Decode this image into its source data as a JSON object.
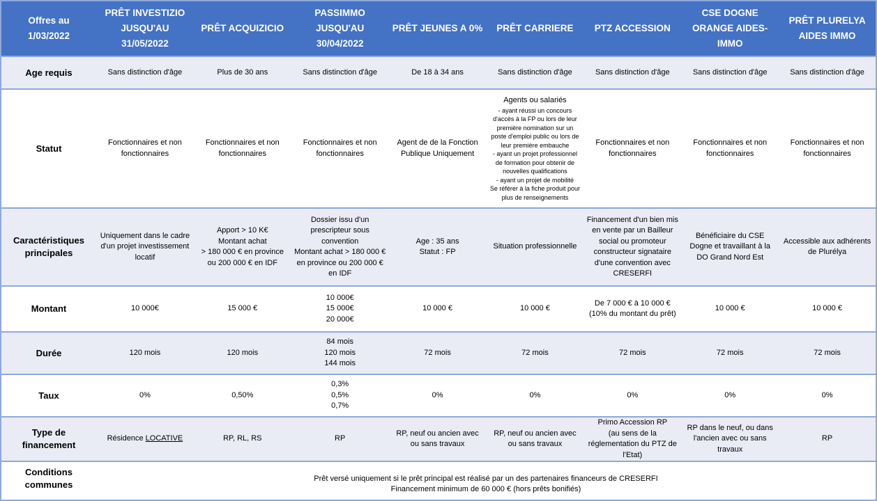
{
  "header": {
    "corner": "Offres au 1/03/2022",
    "columns": [
      "PRÊT INVESTIZIO JUSQU'AU 31/05/2022",
      "PRÊT ACQUIZICIO",
      "PASSIMMO JUSQU'AU 30/04/2022",
      "PRÊT JEUNES A 0%",
      "PRÊT CARRIERE",
      "PTZ ACCESSION",
      "CSE DOGNE ORANGE AIDES- IMMO",
      "PRÊT PLURELYA AIDES IMMO"
    ]
  },
  "rows": [
    {
      "label": "Age requis",
      "cells": [
        "Sans distinction d'âge",
        "Plus de 30 ans",
        "Sans distinction d'âge",
        "De 18 à 34 ans",
        "Sans distinction d'âge",
        "Sans distinction d'âge",
        "Sans distinction d'âge",
        "Sans distinction d'âge"
      ]
    },
    {
      "label": "Statut",
      "cells": [
        "Fonctionnaires et non fonctionnaires",
        "Fonctionnaires et non fonctionnaires",
        "Fonctionnaires et non fonctionnaires",
        "Agent de de la Fonction Publique Uniquement",
        "",
        "Fonctionnaires et non fonctionnaires",
        "Fonctionnaires et non fonctionnaires",
        "Fonctionnaires et non fonctionnaires"
      ],
      "carriere_title": "Agents ou salariés",
      "carriere_detail": "- ayant réussi un concours d'accès à la FP ou lors de leur première nomination sur un poste d'emploi public ou lors de leur première embauche\n- ayant un projet professionnel de formation pour obtenir de nouvelles qualifications\n- ayant un projet de mobilité\nSe référer à la fiche produit pour plus de renseignements"
    },
    {
      "label": "Caractéristiques principales",
      "cells": [
        "Uniquement dans le cadre d'un projet investissement locatif",
        "Apport > 10 K€\nMontant achat\n> 180 000 € en province ou 200 000 € en IDF",
        "Dossier issu d'un prescripteur sous convention\nMontant achat > 180 000 € en province ou 200 000 € en IDF",
        "Age : 35 ans\nStatut : FP",
        "Situation professionnelle",
        "Financement d'un bien mis en vente par un Bailleur social ou promoteur constructeur signataire d'une convention avec CRESERFI",
        "Bénéficiaire du CSE Dogne et travaillant à la DO Grand Nord Est",
        "Accessible aux adhérents de Plurélya"
      ]
    },
    {
      "label": "Montant",
      "cells": [
        "10 000€",
        "15 000 €",
        "10 000€\n15 000€\n20 000€",
        "10 000 €",
        "10 000 €",
        "De 7 000 € à 10 000 €\n(10% du montant du prêt)",
        "10 000 €",
        "10 000 €"
      ]
    },
    {
      "label": "Durée",
      "cells": [
        "120 mois",
        "120 mois",
        "84 mois\n120 mois\n144 mois",
        "72 mois",
        "72 mois",
        "72 mois",
        "72 mois",
        "72 mois"
      ]
    },
    {
      "label": "Taux",
      "cells": [
        "0%",
        "0,50%",
        "0,3%\n0,5%\n0,7%",
        "0%",
        "0%",
        "0%",
        "0%",
        "0%"
      ]
    },
    {
      "label": "Type de financement",
      "cells": [
        "",
        "RP, RL, RS",
        "RP",
        "RP, neuf ou ancien avec ou sans travaux",
        "RP, neuf ou ancien avec ou sans travaux",
        "Primo Accession RP\n(au sens de la réglementation du PTZ de l'Etat)",
        "RP dans le neuf, ou dans l'ancien avec ou sans travaux",
        "RP"
      ],
      "investizio_prefix": "Résidence ",
      "investizio_underlined": "LOCATIVE"
    }
  ],
  "conditions": {
    "label": "Conditions communes",
    "line1": "Prêt versé uniquement si le prêt principal est réalisé par un des partenaires financeurs de CRESERFI",
    "line2": "Financement minimum de 60 000 € (hors prêts bonifiés)"
  },
  "colors": {
    "header": "#4472C4",
    "alt_row": "#E9EBF5",
    "border": "#8EA9DB"
  }
}
